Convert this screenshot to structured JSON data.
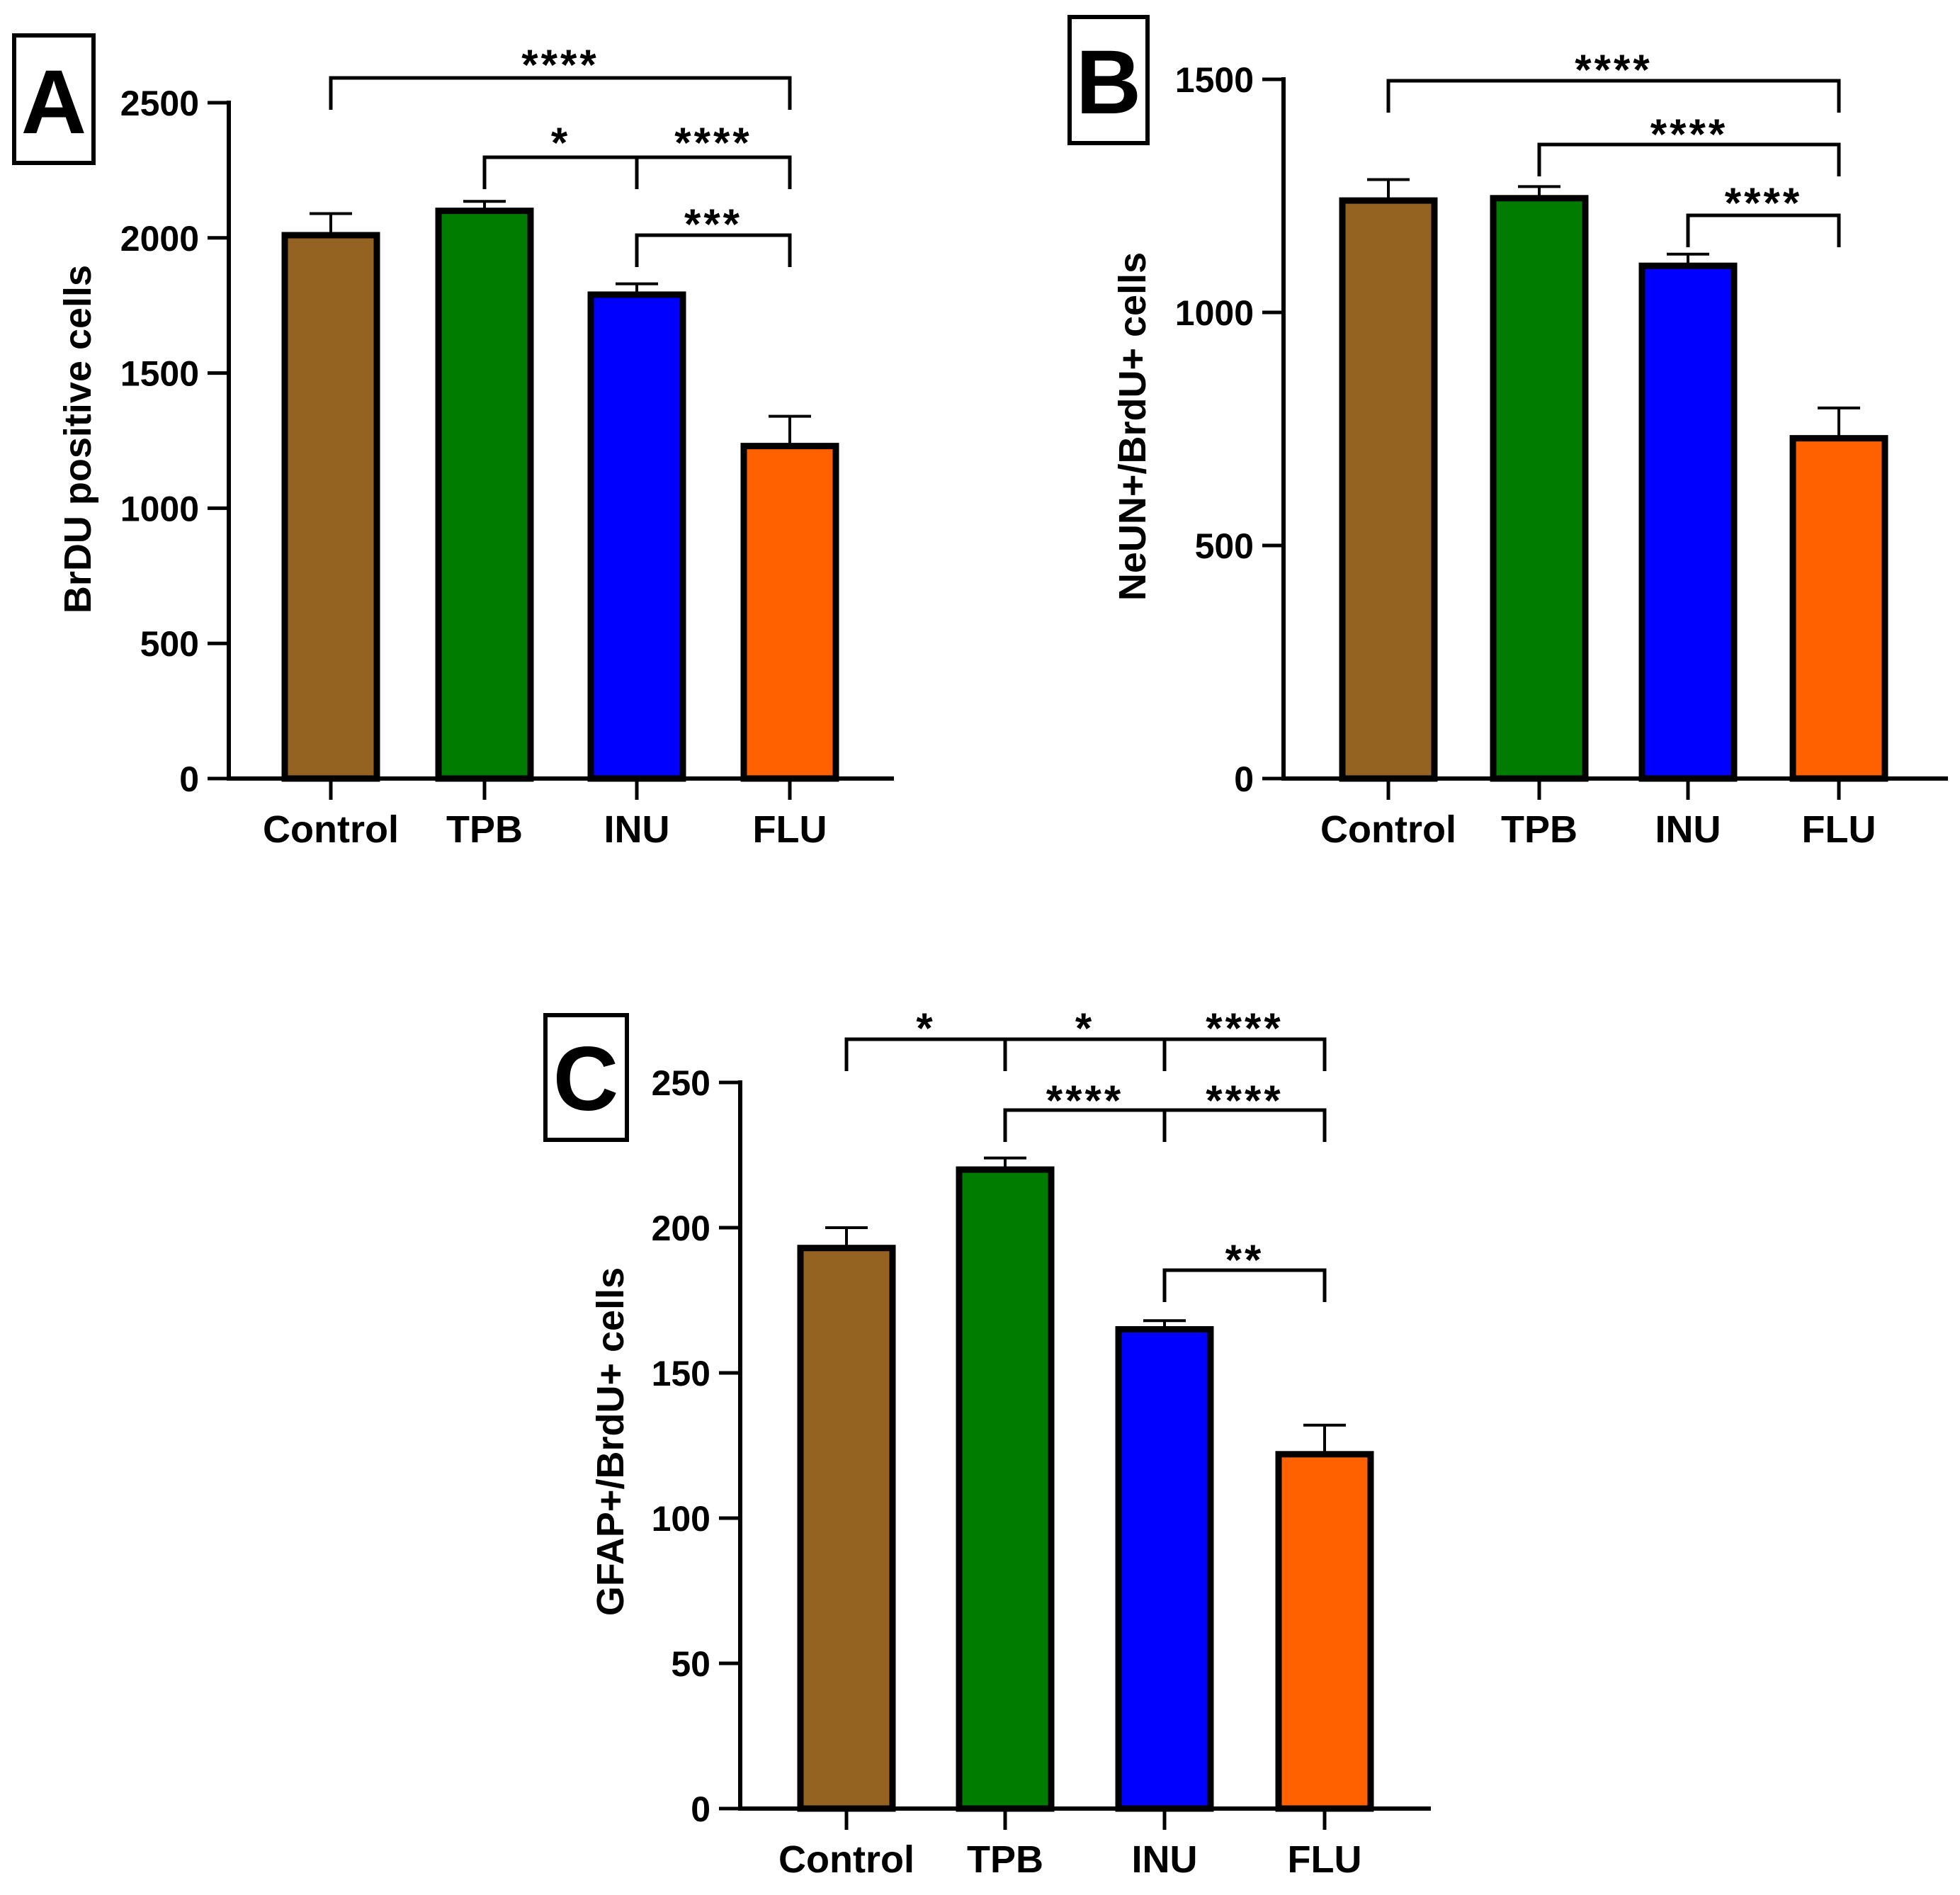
{
  "figure": {
    "panels_caption": "Bar charts A, B, C"
  },
  "chart_data": [
    {
      "panel": "A",
      "type": "bar",
      "title": "",
      "xlabel": "",
      "ylabel": "BrDU positive cells",
      "ylim": [
        0,
        2500
      ],
      "yticks": [
        0,
        500,
        1000,
        1500,
        2000,
        2500
      ],
      "categories": [
        "Control",
        "TPB",
        "INU",
        "FLU"
      ],
      "values": [
        2010,
        2100,
        1790,
        1230
      ],
      "errors": [
        80,
        35,
        40,
        110
      ],
      "colors": [
        "#946321",
        "#007C00",
        "#0000FF",
        "#FF6000"
      ],
      "significance": [
        {
          "from": 0,
          "to": 3,
          "label": "****",
          "level": 0
        },
        {
          "from": 1,
          "to": 2,
          "label": "*",
          "level": 1
        },
        {
          "from": 2,
          "to": 3,
          "label": "****",
          "level": 1
        },
        {
          "from": 2,
          "to": 3,
          "label": "***",
          "level": 2
        }
      ]
    },
    {
      "panel": "B",
      "type": "bar",
      "title": "",
      "xlabel": "",
      "ylabel": "NeUN+/BrdU+ cells",
      "ylim": [
        0,
        1500
      ],
      "yticks": [
        0,
        500,
        1000,
        1500
      ],
      "categories": [
        "Control",
        "TPB",
        "INU",
        "FLU"
      ],
      "values": [
        1240,
        1245,
        1100,
        730
      ],
      "errors": [
        45,
        25,
        25,
        65
      ],
      "colors": [
        "#946321",
        "#007C00",
        "#0000FF",
        "#FF6000"
      ],
      "significance": [
        {
          "from": 0,
          "to": 3,
          "label": "****",
          "level": 0
        },
        {
          "from": 1,
          "to": 3,
          "label": "****",
          "level": 1
        },
        {
          "from": 2,
          "to": 3,
          "label": "****",
          "level": 2
        }
      ]
    },
    {
      "panel": "C",
      "type": "bar",
      "title": "",
      "xlabel": "",
      "ylabel": "GFAP+/BrdU+ cells",
      "ylim": [
        0,
        250
      ],
      "yticks": [
        0,
        50,
        100,
        150,
        200,
        250
      ],
      "categories": [
        "Control",
        "TPB",
        "INU",
        "FLU"
      ],
      "values": [
        193,
        220,
        165,
        122
      ],
      "errors": [
        7,
        4,
        3,
        10
      ],
      "colors": [
        "#946321",
        "#007C00",
        "#0000FF",
        "#FF6000"
      ],
      "significance": [
        {
          "from": 0,
          "to": 1,
          "label": "*",
          "level": 0
        },
        {
          "from": 1,
          "to": 2,
          "label": "*",
          "level": 0
        },
        {
          "from": 2,
          "to": 3,
          "label": "****",
          "level": 0
        },
        {
          "from": 1,
          "to": 2,
          "label": "****",
          "level": 1
        },
        {
          "from": 2,
          "to": 3,
          "label": "****",
          "level": 1
        },
        {
          "from": 2,
          "to": 3,
          "label": "**",
          "level": 2
        }
      ]
    }
  ]
}
